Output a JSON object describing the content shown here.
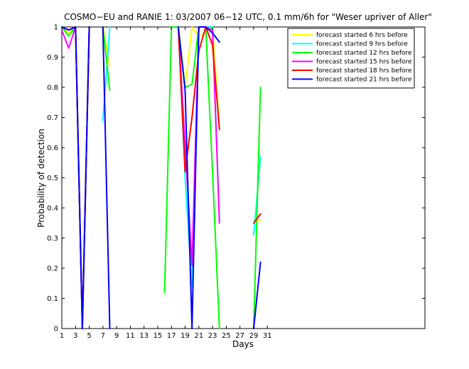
{
  "chart_data": {
    "type": "line",
    "title": "COSMO−EU and RANIE 1: 03/2007 06−12 UTC, 0.1 mm/6h for \"Weser upriver of Aller\"",
    "xlabel": "Days",
    "ylabel": "Probability of detection",
    "xlim": [
      1,
      54
    ],
    "ylim": [
      0,
      1
    ],
    "xticks": [
      1,
      3,
      5,
      7,
      9,
      11,
      13,
      15,
      17,
      19,
      21,
      23,
      25,
      27,
      29,
      31
    ],
    "yticks": [
      0,
      0.1,
      0.2,
      0.3,
      0.4,
      0.5,
      0.6,
      0.7,
      0.8,
      0.9,
      1
    ],
    "ytick_labels": [
      "0",
      "0.1",
      "0.2",
      "0.3",
      "0.4",
      "0.5",
      "0.6",
      "0.7",
      "0.8",
      "0.9",
      "1"
    ],
    "grid": false,
    "legend_position": "top-right",
    "series": [
      {
        "name": "forecast started 6 hrs before",
        "color": "#ffff00",
        "points": [
          [
            1,
            1
          ],
          [
            2,
            0.98
          ],
          [
            3,
            1
          ],
          [
            4,
            0
          ],
          [
            5,
            1
          ],
          [
            null,
            null
          ],
          [
            7,
            1
          ],
          [
            8,
            0.87
          ],
          [
            null,
            null
          ],
          [
            17,
            1
          ],
          [
            18,
            1
          ],
          [
            19,
            0.8
          ],
          [
            20,
            1
          ],
          [
            21,
            0.97
          ],
          [
            22,
            0.98
          ],
          [
            23,
            1
          ],
          [
            24,
            0.67
          ],
          [
            null,
            null
          ],
          [
            29,
            0.36
          ],
          [
            30,
            0.36
          ]
        ]
      },
      {
        "name": "forecast started 9 hrs before",
        "color": "#00ffff",
        "points": [
          [
            1,
            1
          ],
          [
            2,
            0.97
          ],
          [
            3,
            1
          ],
          [
            4,
            0
          ],
          [
            5,
            1
          ],
          [
            null,
            null
          ],
          [
            7,
            0.69
          ],
          [
            8,
            1
          ],
          [
            null,
            null
          ],
          [
            17,
            1
          ],
          [
            18,
            1
          ],
          [
            19,
            0.5
          ],
          [
            20,
            0.14
          ],
          [
            21,
            1
          ],
          [
            22,
            1
          ],
          [
            23,
            1
          ],
          [
            24,
            0.36
          ],
          [
            null,
            null
          ],
          [
            29,
            0.31
          ],
          [
            30,
            0.57
          ]
        ]
      },
      {
        "name": "forecast started 12 hrs before",
        "color": "#00ff00",
        "points": [
          [
            1,
            1
          ],
          [
            2,
            0.97
          ],
          [
            3,
            1
          ],
          [
            4,
            0
          ],
          [
            5,
            1
          ],
          [
            null,
            null
          ],
          [
            7,
            1
          ],
          [
            8,
            0.79
          ],
          [
            null,
            null
          ],
          [
            16,
            0.12
          ],
          [
            17,
            1
          ],
          [
            18,
            1
          ],
          [
            19,
            0.8
          ],
          [
            20,
            0.81
          ],
          [
            21,
            1
          ],
          [
            22,
            1
          ],
          [
            23,
            0.52
          ],
          [
            24,
            0
          ],
          [
            null,
            null
          ],
          [
            29,
            0
          ],
          [
            30,
            0.8
          ]
        ]
      },
      {
        "name": "forecast started 15 hrs before",
        "color": "#ff00ff",
        "points": [
          [
            1,
            0.99
          ],
          [
            2,
            0.93
          ],
          [
            3,
            1
          ],
          [
            4,
            0
          ],
          [
            5,
            1
          ],
          [
            null,
            null
          ],
          [
            18,
            1
          ],
          [
            19,
            0.61
          ],
          [
            20,
            0.21
          ],
          [
            21,
            1
          ],
          [
            22,
            1
          ],
          [
            23,
            0.99
          ],
          [
            24,
            0.35
          ]
        ]
      },
      {
        "name": "forecast started 18 hrs before",
        "color": "#ff0000",
        "points": [
          [
            1,
            1
          ],
          [
            2,
            0.99
          ],
          [
            3,
            1
          ],
          [
            4,
            0
          ],
          [
            5,
            1
          ],
          [
            null,
            null
          ],
          [
            18,
            1
          ],
          [
            19,
            0.52
          ],
          [
            20,
            0.7
          ],
          [
            21,
            0.92
          ],
          [
            22,
            1
          ],
          [
            23,
            0.94
          ],
          [
            24,
            0.66
          ],
          [
            null,
            null
          ],
          [
            29,
            0.35
          ],
          [
            30,
            0.38
          ]
        ]
      },
      {
        "name": "forecast started 21 hrs before",
        "color": "#0000ff",
        "points": [
          [
            1,
            1
          ],
          [
            2,
            0.99
          ],
          [
            3,
            1
          ],
          [
            4,
            0
          ],
          [
            5,
            1
          ],
          [
            null,
            null
          ],
          [
            7,
            1
          ],
          [
            8,
            0
          ],
          [
            null,
            null
          ],
          [
            18,
            1
          ],
          [
            19,
            0.79
          ],
          [
            20,
            0
          ],
          [
            21,
            1
          ],
          [
            22,
            1
          ],
          [
            23,
            0.98
          ],
          [
            24,
            0.95
          ],
          [
            null,
            null
          ],
          [
            29,
            0
          ],
          [
            30,
            0.22
          ]
        ]
      }
    ]
  }
}
